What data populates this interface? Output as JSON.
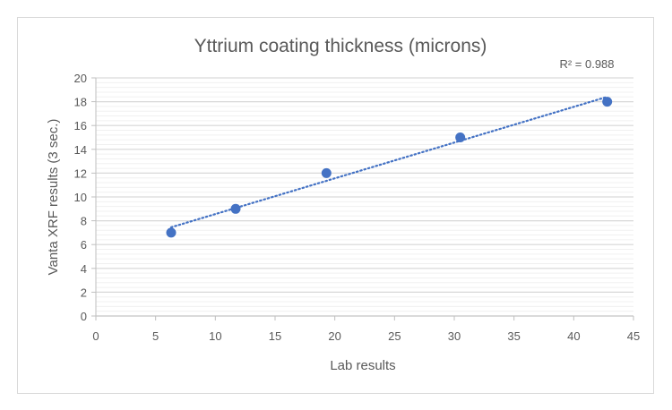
{
  "chart_data": {
    "type": "scatter",
    "title": "Yttrium coating thickness (microns)",
    "xlabel": "Lab results",
    "ylabel": "Vanta XRF results (3 sec.)",
    "xlim": [
      0,
      45
    ],
    "ylim": [
      0,
      20
    ],
    "xticks": [
      0,
      5,
      10,
      15,
      20,
      25,
      30,
      35,
      40,
      45
    ],
    "yticks": [
      0,
      2,
      4,
      6,
      8,
      10,
      12,
      14,
      16,
      18,
      20
    ],
    "grid": "horizontal major and minor",
    "points": [
      {
        "x": 6.3,
        "y": 7
      },
      {
        "x": 11.7,
        "y": 9
      },
      {
        "x": 19.3,
        "y": 12
      },
      {
        "x": 30.5,
        "y": 15
      },
      {
        "x": 42.8,
        "y": 18
      }
    ],
    "trendline": {
      "type": "linear",
      "style": "dotted",
      "r_squared_label": "R² = 0.988"
    },
    "colors": {
      "series": "#4472c4",
      "major_grid": "#d9d9d9",
      "minor_grid": "#f0f0f0",
      "text": "#595959"
    }
  }
}
